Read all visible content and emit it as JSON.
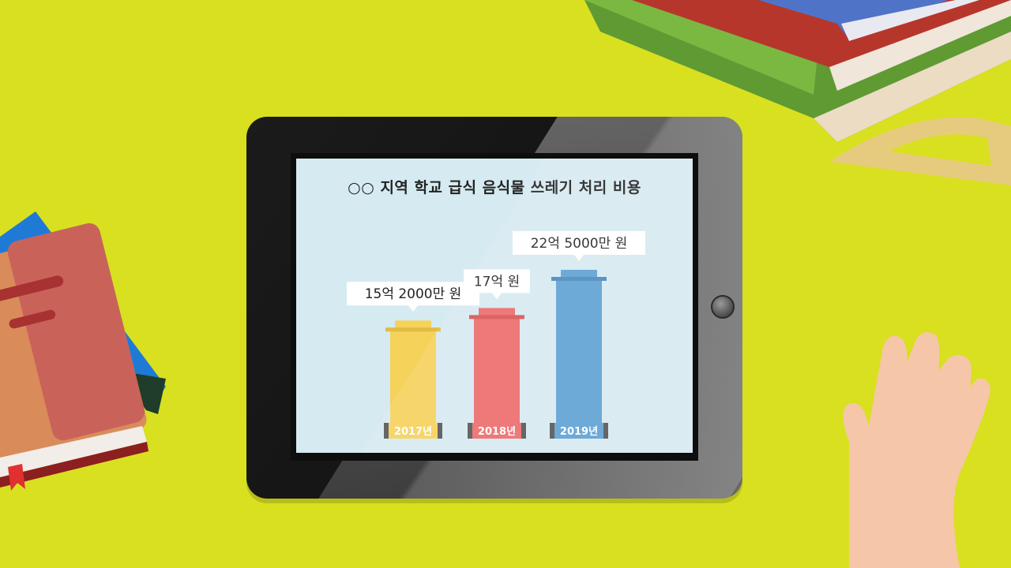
{
  "chart_data": {
    "type": "bar",
    "title": "○○ 지역 학교 급식 음식물 쓰레기 처리 비용",
    "xlabel": "",
    "ylabel": "",
    "categories": [
      "2017년",
      "2018년",
      "2019년"
    ],
    "values": [
      15.2,
      17,
      22.5
    ],
    "unit": "억 원",
    "data_labels": [
      "15억 2000만 원",
      "17억 원",
      "22억 5000만 원"
    ],
    "colors": [
      "#f5d25a",
      "#ec6a6a",
      "#5ea1d4"
    ],
    "rim_colors": [
      "#e2bb43",
      "#d65353",
      "#4a88bd"
    ],
    "ylim": [
      0,
      25
    ],
    "grid": false
  }
}
